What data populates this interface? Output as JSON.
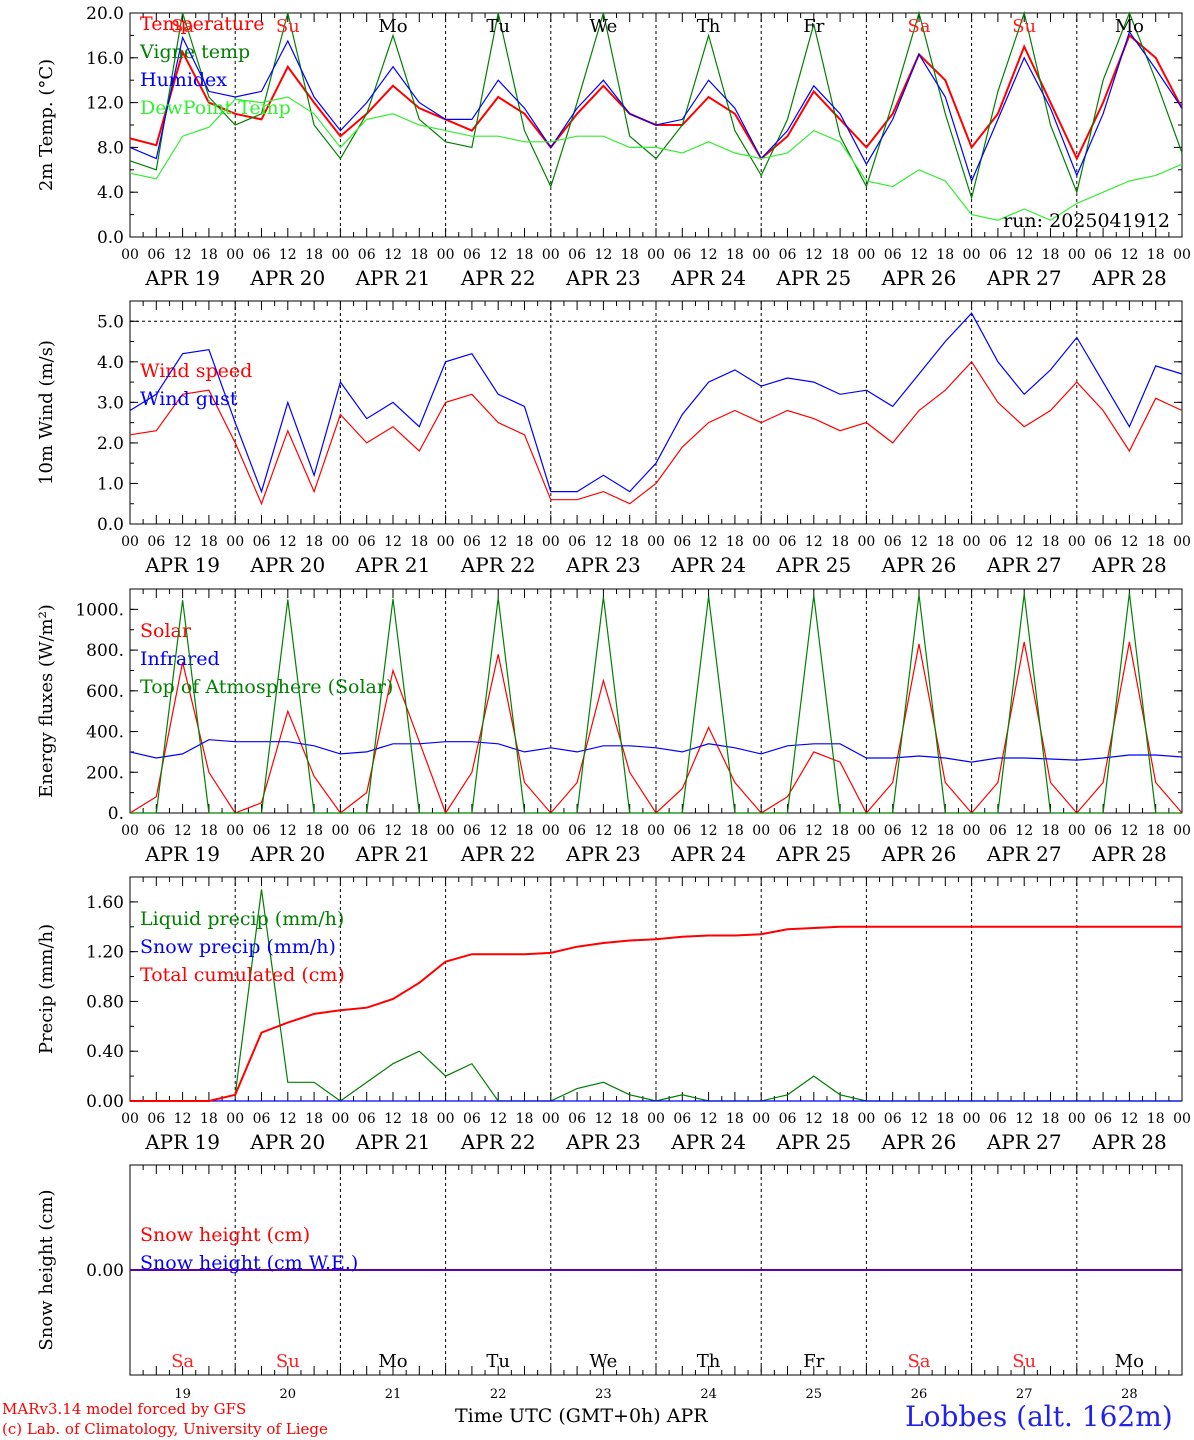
{
  "days": [
    {
      "weekday": "Sa",
      "date": "APR 19",
      "num": "19",
      "weekend": true
    },
    {
      "weekday": "Su",
      "date": "APR 20",
      "num": "20",
      "weekend": true
    },
    {
      "weekday": "Mo",
      "date": "APR 21",
      "num": "21",
      "weekend": false
    },
    {
      "weekday": "Tu",
      "date": "APR 22",
      "num": "22",
      "weekend": false
    },
    {
      "weekday": "We",
      "date": "APR 23",
      "num": "23",
      "weekend": false
    },
    {
      "weekday": "Th",
      "date": "APR 24",
      "num": "24",
      "weekend": false
    },
    {
      "weekday": "Fr",
      "date": "APR 25",
      "num": "25",
      "weekend": false
    },
    {
      "weekday": "Sa",
      "date": "APR 26",
      "num": "26",
      "weekend": true
    },
    {
      "weekday": "Su",
      "date": "APR 27",
      "num": "27",
      "weekend": true
    },
    {
      "weekday": "Mo",
      "date": "APR 28",
      "num": "28",
      "weekend": false
    }
  ],
  "hour_labels": [
    "00",
    "06",
    "12",
    "18"
  ],
  "last_hour_label": "00",
  "footer": {
    "credit_line1": "MARv3.14 model forced by GFS",
    "credit_line2": "(c) Lab. of Climatology, University of Liege",
    "x_axis_title": "Time UTC (GMT+0h) APR",
    "station": "Lobbes (alt. 162m)"
  },
  "colors": {
    "red": "#ff0000",
    "green": "#008000",
    "blue": "#0000ff",
    "lightgreen": "#33ee33",
    "weekend": "#ff2222"
  },
  "chart_data": [
    {
      "type": "line",
      "ylabel": "2m Temp. (°C)",
      "ylim": [
        0,
        20
      ],
      "yticks": [
        "0.0",
        "4.0",
        "8.0",
        "12.0",
        "16.0",
        "20.0"
      ],
      "ytick_values": [
        0,
        4,
        8,
        12,
        16,
        20
      ],
      "annotation": "run: 2025041912",
      "hours": [
        0,
        6,
        12,
        18,
        24,
        30,
        36,
        42,
        48,
        54,
        60,
        66,
        72,
        78,
        84,
        90,
        96,
        102,
        108,
        114,
        120,
        126,
        132,
        138,
        144,
        150,
        156,
        162,
        168,
        174,
        180,
        186,
        192,
        198,
        204,
        210,
        216,
        222,
        228,
        234,
        240
      ],
      "series": [
        {
          "name": "Temperature",
          "color": "#ff0000",
          "values": [
            8.8,
            8.2,
            16.5,
            12.0,
            11.0,
            10.5,
            15.2,
            12.0,
            9.0,
            11.0,
            13.5,
            11.5,
            10.5,
            9.5,
            12.5,
            11.0,
            8.0,
            11.0,
            13.5,
            11.0,
            10.0,
            10.0,
            12.5,
            11.0,
            7.0,
            9.0,
            13.0,
            10.5,
            8.0,
            11.0,
            16.3,
            14.0,
            8.0,
            11.0,
            17.0,
            12.0,
            7.0,
            12.0,
            18.0,
            16.0,
            11.5
          ]
        },
        {
          "name": "Vigne temp",
          "color": "#008000",
          "values": [
            6.8,
            6.0,
            20.0,
            12.5,
            10.0,
            11.0,
            20.0,
            10.0,
            7.0,
            11.0,
            18.0,
            10.5,
            8.5,
            8.0,
            20.0,
            9.5,
            4.5,
            12.0,
            20.0,
            9.0,
            7.0,
            10.0,
            18.0,
            9.5,
            5.5,
            10.5,
            19.0,
            9.0,
            4.5,
            12.0,
            20.0,
            11.0,
            3.5,
            13.0,
            20.0,
            10.0,
            4.0,
            14.0,
            20.0,
            14.0,
            7.5
          ]
        },
        {
          "name": "Humidex",
          "color": "#0000ff",
          "values": [
            8.0,
            7.0,
            17.8,
            13.0,
            12.5,
            13.0,
            17.5,
            12.5,
            9.5,
            12.0,
            15.2,
            12.0,
            10.5,
            10.5,
            14.0,
            11.5,
            8.0,
            11.5,
            14.0,
            11.0,
            10.0,
            10.5,
            14.0,
            11.5,
            7.0,
            9.5,
            13.5,
            11.0,
            6.5,
            10.5,
            16.3,
            12.5,
            5.0,
            10.5,
            16.0,
            11.5,
            5.5,
            11.0,
            18.3,
            15.0,
            11.5
          ]
        },
        {
          "name": "DewPoint Temp",
          "color": "#33ee33",
          "values": [
            5.7,
            5.2,
            9.0,
            9.8,
            12.3,
            12.0,
            12.5,
            11.0,
            8.0,
            10.5,
            11.0,
            10.0,
            9.5,
            9.0,
            9.0,
            8.5,
            8.5,
            9.0,
            9.0,
            8.0,
            8.0,
            7.5,
            8.5,
            7.5,
            7.0,
            7.5,
            9.5,
            8.5,
            5.0,
            4.5,
            6.0,
            5.0,
            2.0,
            1.5,
            2.5,
            1.5,
            3.0,
            4.0,
            5.0,
            5.5,
            6.5
          ]
        }
      ]
    },
    {
      "type": "line",
      "ylabel": "10m Wind (m/s)",
      "ylim": [
        0,
        5.5
      ],
      "yticks": [
        "0.0",
        "1.0",
        "2.0",
        "3.0",
        "4.0",
        "5.0"
      ],
      "ytick_values": [
        0,
        1,
        2,
        3,
        4,
        5
      ],
      "hours": [
        0,
        6,
        12,
        18,
        24,
        30,
        36,
        42,
        48,
        54,
        60,
        66,
        72,
        78,
        84,
        90,
        96,
        102,
        108,
        114,
        120,
        126,
        132,
        138,
        144,
        150,
        156,
        162,
        168,
        174,
        180,
        186,
        192,
        198,
        204,
        210,
        216,
        222,
        228,
        234,
        240
      ],
      "series": [
        {
          "name": "Wind speed",
          "color": "#ff0000",
          "values": [
            2.2,
            2.3,
            3.2,
            3.3,
            2.0,
            0.5,
            2.3,
            0.8,
            2.7,
            2.0,
            2.4,
            1.8,
            3.0,
            3.2,
            2.5,
            2.2,
            0.6,
            0.6,
            0.8,
            0.5,
            1.0,
            1.9,
            2.5,
            2.8,
            2.5,
            2.8,
            2.6,
            2.3,
            2.5,
            2.0,
            2.8,
            3.3,
            4.0,
            3.0,
            2.4,
            2.8,
            3.5,
            2.8,
            1.8,
            3.1,
            2.8
          ]
        },
        {
          "name": "Wind gust",
          "color": "#0000ff",
          "values": [
            2.8,
            3.2,
            4.2,
            4.3,
            2.5,
            0.8,
            3.0,
            1.2,
            3.5,
            2.6,
            3.0,
            2.4,
            4.0,
            4.2,
            3.2,
            2.9,
            0.8,
            0.8,
            1.2,
            0.8,
            1.5,
            2.7,
            3.5,
            3.8,
            3.4,
            3.6,
            3.5,
            3.2,
            3.3,
            2.9,
            3.7,
            4.5,
            5.2,
            4.0,
            3.2,
            3.8,
            4.6,
            3.5,
            2.4,
            3.9,
            3.7
          ]
        }
      ]
    },
    {
      "type": "line",
      "ylabel": "Energy fluxes (W/m²)",
      "ylim": [
        0,
        1100
      ],
      "yticks": [
        "0.",
        "200.",
        "400.",
        "600.",
        "800.",
        "1000."
      ],
      "ytick_values": [
        0,
        200,
        400,
        600,
        800,
        1000
      ],
      "hours": [
        0,
        6,
        12,
        18,
        24,
        30,
        36,
        42,
        48,
        54,
        60,
        66,
        72,
        78,
        84,
        90,
        96,
        102,
        108,
        114,
        120,
        126,
        132,
        138,
        144,
        150,
        156,
        162,
        168,
        174,
        180,
        186,
        192,
        198,
        204,
        210,
        216,
        222,
        228,
        234,
        240
      ],
      "series": [
        {
          "name": "Solar",
          "color": "#ff0000",
          "values": [
            0,
            80,
            740,
            200,
            0,
            50,
            500,
            180,
            0,
            100,
            700,
            350,
            0,
            200,
            780,
            150,
            0,
            150,
            650,
            200,
            0,
            120,
            420,
            150,
            0,
            80,
            300,
            250,
            0,
            150,
            830,
            150,
            0,
            150,
            840,
            150,
            0,
            150,
            840,
            150,
            0
          ]
        },
        {
          "name": "Infrared",
          "color": "#0000ff",
          "values": [
            300,
            270,
            290,
            360,
            350,
            350,
            350,
            330,
            290,
            300,
            340,
            340,
            350,
            350,
            340,
            300,
            320,
            300,
            330,
            330,
            320,
            300,
            340,
            320,
            290,
            330,
            340,
            340,
            270,
            270,
            280,
            270,
            250,
            270,
            270,
            265,
            260,
            270,
            285,
            285,
            275
          ]
        },
        {
          "name": "Top of Atmosphere (Solar)",
          "color": "#008000",
          "values": [
            0,
            0,
            1045,
            0,
            0,
            0,
            1048,
            0,
            0,
            0,
            1052,
            0,
            0,
            0,
            1056,
            0,
            0,
            0,
            1060,
            0,
            0,
            0,
            1064,
            0,
            0,
            0,
            1068,
            0,
            0,
            0,
            1072,
            0,
            0,
            0,
            1076,
            0,
            0,
            0,
            1080,
            0,
            0
          ]
        }
      ]
    },
    {
      "type": "line",
      "ylabel": "Precip (mm/h)",
      "ylim": [
        0,
        1.8
      ],
      "yticks": [
        "0.00",
        "0.40",
        "0.80",
        "1.20",
        "1.60"
      ],
      "ytick_values": [
        0,
        0.4,
        0.8,
        1.2,
        1.6
      ],
      "hours": [
        0,
        6,
        12,
        18,
        24,
        30,
        36,
        42,
        48,
        54,
        60,
        66,
        72,
        78,
        84,
        90,
        96,
        102,
        108,
        114,
        120,
        126,
        132,
        138,
        144,
        150,
        156,
        162,
        168,
        174,
        180,
        186,
        192,
        198,
        204,
        210,
        216,
        222,
        228,
        234,
        240
      ],
      "series": [
        {
          "name": "Liquid precip (mm/h)",
          "color": "#008000",
          "values": [
            0,
            0,
            0,
            0,
            0.05,
            1.7,
            0.15,
            0.15,
            0,
            0.15,
            0.3,
            0.4,
            0.2,
            0.3,
            0,
            0,
            0,
            0.1,
            0.15,
            0.05,
            0,
            0.05,
            0,
            0,
            0,
            0.05,
            0.2,
            0.05,
            0,
            0,
            0,
            0,
            0,
            0,
            0,
            0,
            0,
            0,
            0,
            0,
            0
          ]
        },
        {
          "name": "Snow precip (mm/h)",
          "color": "#0000ff",
          "values": [
            0,
            0,
            0,
            0,
            0,
            0,
            0,
            0,
            0,
            0,
            0,
            0,
            0,
            0,
            0,
            0,
            0,
            0,
            0,
            0,
            0,
            0,
            0,
            0,
            0,
            0,
            0,
            0,
            0,
            0,
            0,
            0,
            0,
            0,
            0,
            0,
            0,
            0,
            0,
            0,
            0
          ]
        },
        {
          "name": "Total cumulated (cm)",
          "color": "#ff0000",
          "values": [
            0,
            0,
            0,
            0,
            0.05,
            0.55,
            0.63,
            0.7,
            0.73,
            0.75,
            0.82,
            0.95,
            1.12,
            1.18,
            1.18,
            1.18,
            1.19,
            1.24,
            1.27,
            1.29,
            1.3,
            1.32,
            1.33,
            1.33,
            1.34,
            1.38,
            1.39,
            1.4,
            1.4,
            1.4,
            1.4,
            1.4,
            1.4,
            1.4,
            1.4,
            1.4,
            1.4,
            1.4,
            1.4,
            1.4,
            1.4
          ]
        }
      ]
    },
    {
      "type": "line",
      "ylabel": "Snow height (cm)",
      "ylim": [
        -1,
        1
      ],
      "yticks": [
        "0.00"
      ],
      "ytick_values": [
        0
      ],
      "hours": [
        0,
        240
      ],
      "series": [
        {
          "name": "Snow height (cm)",
          "color": "#ff0000",
          "values": [
            0,
            0
          ]
        },
        {
          "name": "Snow height (cm W.E.)",
          "color": "#0000ff",
          "values": [
            0,
            0
          ]
        }
      ]
    }
  ]
}
